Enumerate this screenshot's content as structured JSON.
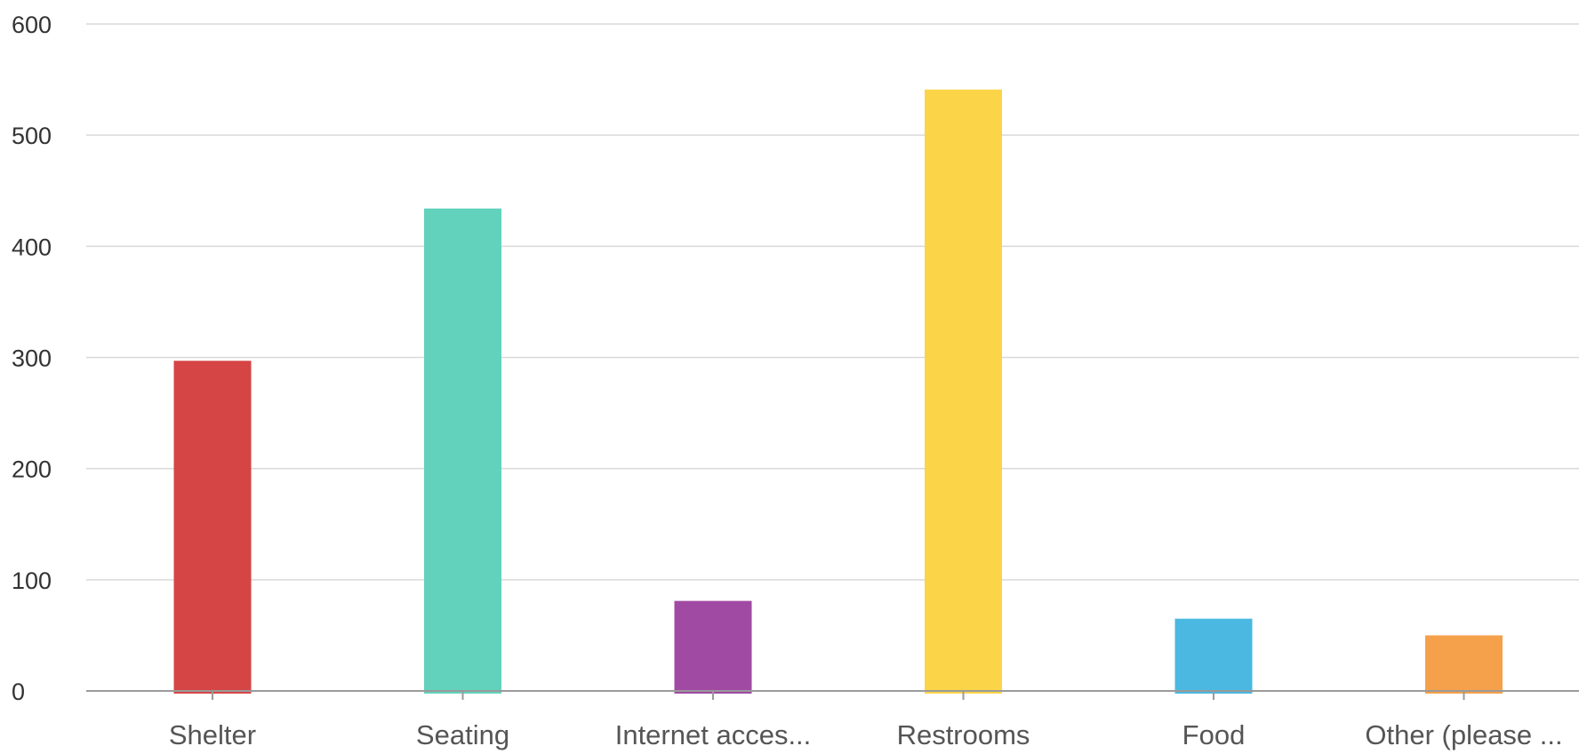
{
  "chart_data": {
    "type": "bar",
    "title": "",
    "xlabel": "",
    "ylabel": "",
    "categories": [
      "Shelter",
      "Seating",
      "Internet acces...",
      "Restrooms",
      "Food",
      "Other (please ..."
    ],
    "values": [
      297,
      434,
      81,
      541,
      65,
      50
    ],
    "colors": [
      "#d64545",
      "#62d2bc",
      "#a04aa3",
      "#fcd447",
      "#4ab8e0",
      "#f5a04a"
    ],
    "ylim": [
      0,
      600
    ],
    "yticks": [
      0,
      100,
      200,
      300,
      400,
      500,
      600
    ],
    "ytick_labels": [
      "0",
      "100",
      "200",
      "300",
      "400",
      "500",
      "600"
    ],
    "grid": true,
    "legend": "none"
  }
}
